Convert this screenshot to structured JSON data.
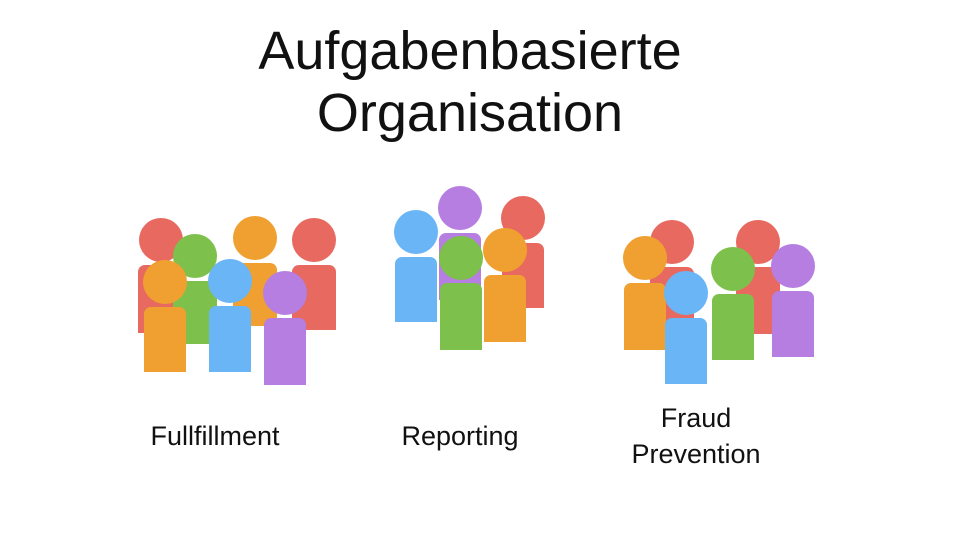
{
  "title": {
    "line1": "Aufgabenbasierte",
    "line2": "Organisation"
  },
  "colors": {
    "red": "#E8695F",
    "green": "#7DC04B",
    "orange": "#F0A030",
    "blue": "#6AB5F5",
    "purple": "#B57EE0"
  },
  "groups": [
    {
      "label_line1": "Fullfillment",
      "label_line2": "",
      "people": [
        "red",
        "orange",
        "red",
        "green",
        "orange",
        "blue",
        "purple"
      ]
    },
    {
      "label_line1": "Reporting",
      "label_line2": "",
      "people": [
        "purple",
        "red",
        "blue",
        "green",
        "orange"
      ]
    },
    {
      "label_line1": "Fraud",
      "label_line2": "Prevention",
      "people": [
        "red",
        "red",
        "orange",
        "green",
        "purple",
        "blue"
      ]
    }
  ]
}
